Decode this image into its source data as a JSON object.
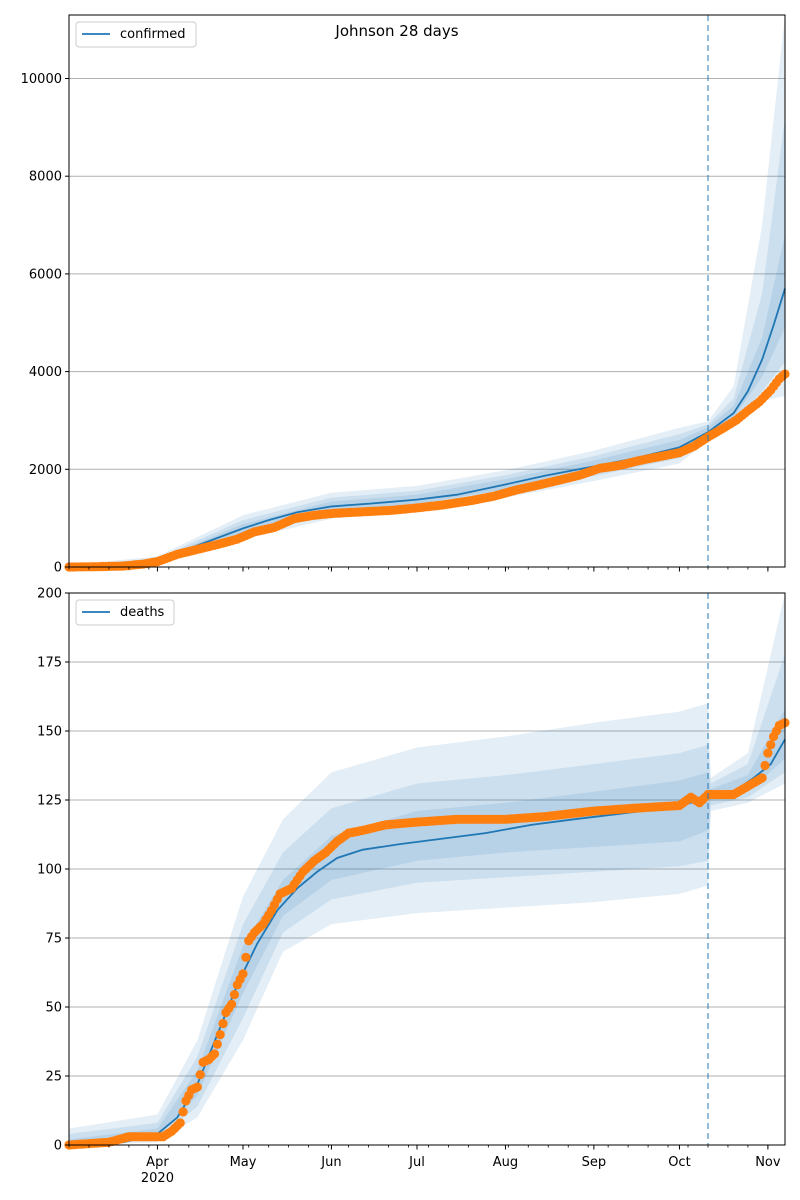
{
  "figure": {
    "title": "Johnson 28 days"
  },
  "colors": {
    "model": "#1f77b4",
    "observed": "#ff7f0e",
    "band": "#1f77b4",
    "grid": "#b0b0b0",
    "forecast_line": "#1f77b4"
  },
  "x_axis": {
    "month_labels": [
      "Apr",
      "May",
      "Jun",
      "Jul",
      "Aug",
      "Sep",
      "Oct",
      "Nov"
    ],
    "year_label": "2020"
  },
  "chart_data": [
    {
      "type": "line",
      "panel": "top",
      "legend": "confirmed",
      "legend_position": "upper-left",
      "grid": "horizontal",
      "x_range": [
        "2020-03-01",
        "2020-11-07"
      ],
      "forecast_start": "2020-10-11",
      "ylim": [
        0,
        11300
      ],
      "yticks": [
        "0",
        "2000",
        "4000",
        "6000",
        "8000",
        "10000"
      ],
      "yticks_values": [
        0,
        2000,
        4000,
        6000,
        8000,
        10000
      ],
      "model": [
        [
          "2020-03-01",
          0
        ],
        [
          "2020-03-15",
          5
        ],
        [
          "2020-03-25",
          40
        ],
        [
          "2020-04-01",
          120
        ],
        [
          "2020-04-10",
          330
        ],
        [
          "2020-04-20",
          550
        ],
        [
          "2020-05-01",
          790
        ],
        [
          "2020-05-10",
          960
        ],
        [
          "2020-05-20",
          1120
        ],
        [
          "2020-06-01",
          1240
        ],
        [
          "2020-06-15",
          1300
        ],
        [
          "2020-07-01",
          1380
        ],
        [
          "2020-07-15",
          1480
        ],
        [
          "2020-08-01",
          1690
        ],
        [
          "2020-08-15",
          1870
        ],
        [
          "2020-09-01",
          2060
        ],
        [
          "2020-09-15",
          2220
        ],
        [
          "2020-10-01",
          2450
        ],
        [
          "2020-10-11",
          2760
        ],
        [
          "2020-10-20",
          3150
        ],
        [
          "2020-10-25",
          3600
        ],
        [
          "2020-10-30",
          4250
        ],
        [
          "2020-11-03",
          4950
        ],
        [
          "2020-11-07",
          5700
        ]
      ],
      "band_inner": [
        [
          "2020-03-01",
          0,
          10
        ],
        [
          "2020-04-01",
          100,
          150
        ],
        [
          "2020-05-01",
          710,
          880
        ],
        [
          "2020-06-01",
          1150,
          1340
        ],
        [
          "2020-07-01",
          1290,
          1480
        ],
        [
          "2020-08-01",
          1590,
          1800
        ],
        [
          "2020-09-01",
          1950,
          2180
        ],
        [
          "2020-10-01",
          2330,
          2600
        ],
        [
          "2020-10-11",
          2690,
          2860
        ],
        [
          "2020-10-20",
          3050,
          3300
        ],
        [
          "2020-10-30",
          3900,
          4700
        ],
        [
          "2020-11-07",
          4900,
          6800
        ]
      ],
      "band_mid": [
        [
          "2020-03-01",
          0,
          20
        ],
        [
          "2020-04-01",
          80,
          180
        ],
        [
          "2020-05-01",
          640,
          960
        ],
        [
          "2020-06-01",
          1080,
          1420
        ],
        [
          "2020-07-01",
          1220,
          1560
        ],
        [
          "2020-08-01",
          1510,
          1880
        ],
        [
          "2020-09-01",
          1860,
          2270
        ],
        [
          "2020-10-01",
          2230,
          2720
        ],
        [
          "2020-10-11",
          2650,
          2920
        ],
        [
          "2020-10-20",
          2950,
          3450
        ],
        [
          "2020-10-30",
          3600,
          5600
        ],
        [
          "2020-11-07",
          4200,
          9200
        ]
      ],
      "band_outer": [
        [
          "2020-03-01",
          0,
          35
        ],
        [
          "2020-04-01",
          60,
          220
        ],
        [
          "2020-05-01",
          560,
          1060
        ],
        [
          "2020-06-01",
          990,
          1520
        ],
        [
          "2020-07-01",
          1140,
          1660
        ],
        [
          "2020-08-01",
          1420,
          1980
        ],
        [
          "2020-09-01",
          1760,
          2380
        ],
        [
          "2020-10-01",
          2120,
          2850
        ],
        [
          "2020-10-11",
          2600,
          2980
        ],
        [
          "2020-10-20",
          2850,
          3700
        ],
        [
          "2020-10-30",
          3400,
          7000
        ],
        [
          "2020-11-07",
          3500,
          11300
        ]
      ],
      "observed": [
        [
          "2020-03-01",
          0
        ],
        [
          "2020-03-10",
          5
        ],
        [
          "2020-03-20",
          20
        ],
        [
          "2020-03-27",
          60
        ],
        [
          "2020-04-01",
          110
        ],
        [
          "2020-04-08",
          260
        ],
        [
          "2020-04-15",
          360
        ],
        [
          "2020-04-22",
          460
        ],
        [
          "2020-04-29",
          570
        ],
        [
          "2020-05-05",
          720
        ],
        [
          "2020-05-12",
          810
        ],
        [
          "2020-05-19",
          990
        ],
        [
          "2020-05-26",
          1060
        ],
        [
          "2020-06-02",
          1100
        ],
        [
          "2020-06-12",
          1130
        ],
        [
          "2020-06-22",
          1160
        ],
        [
          "2020-07-01",
          1210
        ],
        [
          "2020-07-10",
          1270
        ],
        [
          "2020-07-20",
          1360
        ],
        [
          "2020-07-28",
          1450
        ],
        [
          "2020-08-05",
          1580
        ],
        [
          "2020-08-12",
          1670
        ],
        [
          "2020-08-20",
          1780
        ],
        [
          "2020-08-27",
          1880
        ],
        [
          "2020-09-03",
          2020
        ],
        [
          "2020-09-10",
          2080
        ],
        [
          "2020-09-17",
          2180
        ],
        [
          "2020-09-24",
          2260
        ],
        [
          "2020-10-01",
          2340
        ],
        [
          "2020-10-06",
          2470
        ],
        [
          "2020-10-11",
          2660
        ],
        [
          "2020-10-16",
          2830
        ],
        [
          "2020-10-21",
          3010
        ],
        [
          "2020-10-25",
          3200
        ],
        [
          "2020-10-29",
          3380
        ],
        [
          "2020-11-02",
          3620
        ],
        [
          "2020-11-05",
          3850
        ],
        [
          "2020-11-07",
          3950
        ]
      ]
    },
    {
      "type": "line",
      "panel": "bottom",
      "legend": "deaths",
      "legend_position": "upper-left",
      "grid": "horizontal",
      "x_range": [
        "2020-03-01",
        "2020-11-07"
      ],
      "forecast_start": "2020-10-11",
      "ylim": [
        0,
        200
      ],
      "yticks": [
        "0",
        "25",
        "50",
        "75",
        "100",
        "125",
        "150",
        "175",
        "200"
      ],
      "yticks_values": [
        0,
        25,
        50,
        75,
        100,
        125,
        150,
        175,
        200
      ],
      "model": [
        [
          "2020-03-01",
          0
        ],
        [
          "2020-03-20",
          1
        ],
        [
          "2020-04-01",
          4
        ],
        [
          "2020-04-08",
          10
        ],
        [
          "2020-04-15",
          22
        ],
        [
          "2020-04-22",
          40
        ],
        [
          "2020-04-29",
          58
        ],
        [
          "2020-05-06",
          73
        ],
        [
          "2020-05-13",
          85
        ],
        [
          "2020-05-20",
          93
        ],
        [
          "2020-05-27",
          99
        ],
        [
          "2020-06-03",
          104
        ],
        [
          "2020-06-12",
          107
        ],
        [
          "2020-06-25",
          109
        ],
        [
          "2020-07-10",
          111
        ],
        [
          "2020-07-25",
          113
        ],
        [
          "2020-08-10",
          116
        ],
        [
          "2020-08-25",
          118
        ],
        [
          "2020-09-10",
          120
        ],
        [
          "2020-09-25",
          122
        ],
        [
          "2020-10-05",
          124
        ],
        [
          "2020-10-11",
          127
        ],
        [
          "2020-10-20",
          128
        ],
        [
          "2020-10-27",
          133
        ],
        [
          "2020-11-02",
          138
        ],
        [
          "2020-11-07",
          147
        ]
      ],
      "band_inner": [
        [
          "2020-03-01",
          0,
          2
        ],
        [
          "2020-04-01",
          3,
          6
        ],
        [
          "2020-04-15",
          18,
          27
        ],
        [
          "2020-05-01",
          55,
          72
        ],
        [
          "2020-05-15",
          83,
          96
        ],
        [
          "2020-06-01",
          96,
          112
        ],
        [
          "2020-07-01",
          103,
          121
        ],
        [
          "2020-08-01",
          106,
          124
        ],
        [
          "2020-09-01",
          108,
          128
        ],
        [
          "2020-10-01",
          110,
          132
        ],
        [
          "2020-10-11",
          114,
          135
        ],
        [
          "2020-10-12",
          125,
          129
        ],
        [
          "2020-10-25",
          128,
          134
        ],
        [
          "2020-11-07",
          140,
          158
        ]
      ],
      "band_mid": [
        [
          "2020-03-01",
          0,
          4
        ],
        [
          "2020-04-01",
          2,
          8
        ],
        [
          "2020-04-15",
          14,
          32
        ],
        [
          "2020-05-01",
          46,
          80
        ],
        [
          "2020-05-15",
          77,
          106
        ],
        [
          "2020-06-01",
          89,
          122
        ],
        [
          "2020-07-01",
          95,
          131
        ],
        [
          "2020-08-01",
          97,
          134
        ],
        [
          "2020-09-01",
          99,
          138
        ],
        [
          "2020-10-01",
          101,
          142
        ],
        [
          "2020-10-11",
          103,
          145
        ],
        [
          "2020-10-12",
          123,
          131
        ],
        [
          "2020-10-25",
          126,
          138
        ],
        [
          "2020-11-07",
          135,
          178
        ]
      ],
      "band_outer": [
        [
          "2020-03-01",
          0,
          6
        ],
        [
          "2020-04-01",
          1,
          11
        ],
        [
          "2020-04-15",
          10,
          38
        ],
        [
          "2020-05-01",
          38,
          90
        ],
        [
          "2020-05-15",
          70,
          118
        ],
        [
          "2020-06-01",
          80,
          135
        ],
        [
          "2020-07-01",
          84,
          144
        ],
        [
          "2020-08-01",
          86,
          148
        ],
        [
          "2020-09-01",
          88,
          153
        ],
        [
          "2020-10-01",
          91,
          157
        ],
        [
          "2020-10-11",
          94,
          160
        ],
        [
          "2020-10-12",
          121,
          133
        ],
        [
          "2020-10-25",
          124,
          142
        ],
        [
          "2020-11-07",
          131,
          200
        ]
      ],
      "observed": [
        [
          "2020-03-01",
          0
        ],
        [
          "2020-03-15",
          1
        ],
        [
          "2020-03-22",
          3
        ],
        [
          "2020-04-03",
          3
        ],
        [
          "2020-04-06",
          5
        ],
        [
          "2020-04-09",
          8
        ],
        [
          "2020-04-11",
          16
        ],
        [
          "2020-04-13",
          20
        ],
        [
          "2020-04-15",
          21
        ],
        [
          "2020-04-17",
          30
        ],
        [
          "2020-04-19",
          31
        ],
        [
          "2020-04-21",
          33
        ],
        [
          "2020-04-23",
          40
        ],
        [
          "2020-04-25",
          48
        ],
        [
          "2020-04-27",
          51
        ],
        [
          "2020-04-29",
          58
        ],
        [
          "2020-05-01",
          62
        ],
        [
          "2020-05-03",
          74
        ],
        [
          "2020-05-05",
          77
        ],
        [
          "2020-05-08",
          80
        ],
        [
          "2020-05-11",
          85
        ],
        [
          "2020-05-14",
          91
        ],
        [
          "2020-05-18",
          93
        ],
        [
          "2020-05-22",
          99
        ],
        [
          "2020-05-26",
          103
        ],
        [
          "2020-05-30",
          106
        ],
        [
          "2020-06-03",
          110
        ],
        [
          "2020-06-07",
          113
        ],
        [
          "2020-06-12",
          114
        ],
        [
          "2020-06-20",
          116
        ],
        [
          "2020-07-01",
          117
        ],
        [
          "2020-07-15",
          118
        ],
        [
          "2020-08-01",
          118
        ],
        [
          "2020-08-15",
          119
        ],
        [
          "2020-09-01",
          121
        ],
        [
          "2020-09-15",
          122
        ],
        [
          "2020-10-01",
          123
        ],
        [
          "2020-10-05",
          126
        ],
        [
          "2020-10-08",
          124
        ],
        [
          "2020-10-11",
          127
        ],
        [
          "2020-10-20",
          127
        ],
        [
          "2020-10-25",
          130
        ],
        [
          "2020-10-30",
          133
        ],
        [
          "2020-11-01",
          142
        ],
        [
          "2020-11-03",
          148
        ],
        [
          "2020-11-05",
          152
        ],
        [
          "2020-11-07",
          153
        ]
      ]
    }
  ]
}
